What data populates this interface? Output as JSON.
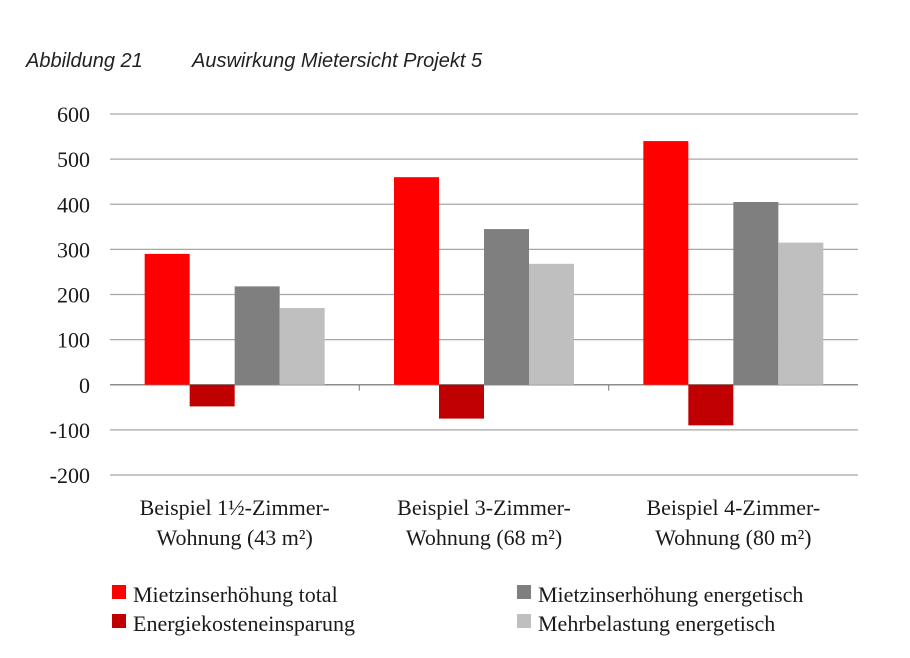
{
  "caption": {
    "number": "Abbildung 21",
    "title": "Auswirkung Mietersicht Projekt 5"
  },
  "chart_data": {
    "type": "bar",
    "categories": [
      [
        "Beispiel 1½-Zimmer-",
        "Wohnung (43 m²)"
      ],
      [
        "Beispiel 3-Zimmer-",
        "Wohnung (68 m²)"
      ],
      [
        "Beispiel 4-Zimmer-",
        "Wohnung (80 m²)"
      ]
    ],
    "series": [
      {
        "name": "Mietzinserhöhung total",
        "color": "#ff0000",
        "values": [
          290,
          460,
          540
        ]
      },
      {
        "name": "Energiekosteneinsparung",
        "color": "#c00000",
        "values": [
          -48,
          -75,
          -90
        ]
      },
      {
        "name": "Mietzinserhöhung energetisch",
        "color": "#7f7f7f",
        "values": [
          218,
          345,
          405
        ]
      },
      {
        "name": "Mehrbelastung energetisch",
        "color": "#bfbfbf",
        "values": [
          170,
          268,
          315
        ]
      }
    ],
    "ylim": [
      -200,
      600
    ],
    "yticks": [
      600,
      500,
      400,
      300,
      200,
      100,
      0,
      -100,
      -200
    ],
    "grid": true,
    "legend_position": "bottom",
    "legend_order": [
      0,
      2,
      1,
      3
    ]
  }
}
